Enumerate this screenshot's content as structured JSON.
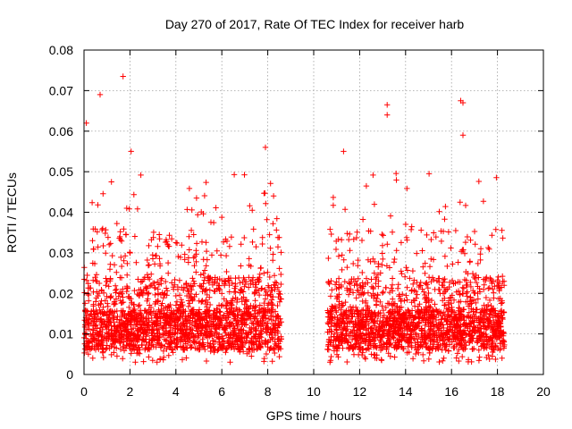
{
  "chart_data": {
    "type": "scatter",
    "title": "Day 270 of 2017, Rate Of TEC Index for receiver harb",
    "xlabel": "GPS time / hours",
    "ylabel": "ROTI / TECUs",
    "xlim": [
      0,
      20
    ],
    "ylim": [
      0,
      0.08
    ],
    "xticks": [
      "0",
      "2",
      "4",
      "6",
      "8",
      "10",
      "12",
      "14",
      "16",
      "18",
      "20"
    ],
    "yticks": [
      "0",
      "0.01",
      "0.02",
      "0.03",
      "0.04",
      "0.05",
      "0.06",
      "0.07",
      "0.08"
    ],
    "grid": true,
    "marker": "plus",
    "color": "#ff0000",
    "segments": [
      {
        "x_start": 0.0,
        "x_end": 8.6
      },
      {
        "x_start": 10.6,
        "x_end": 18.3
      }
    ],
    "notable_points": [
      {
        "x": 0.1,
        "y": 0.062
      },
      {
        "x": 0.7,
        "y": 0.069
      },
      {
        "x": 1.7,
        "y": 0.0735
      },
      {
        "x": 2.05,
        "y": 0.055
      },
      {
        "x": 7.9,
        "y": 0.056
      },
      {
        "x": 11.3,
        "y": 0.055
      },
      {
        "x": 13.2,
        "y": 0.0665
      },
      {
        "x": 13.2,
        "y": 0.064
      },
      {
        "x": 16.4,
        "y": 0.0675
      },
      {
        "x": 16.5,
        "y": 0.067
      },
      {
        "x": 16.5,
        "y": 0.059
      }
    ]
  }
}
